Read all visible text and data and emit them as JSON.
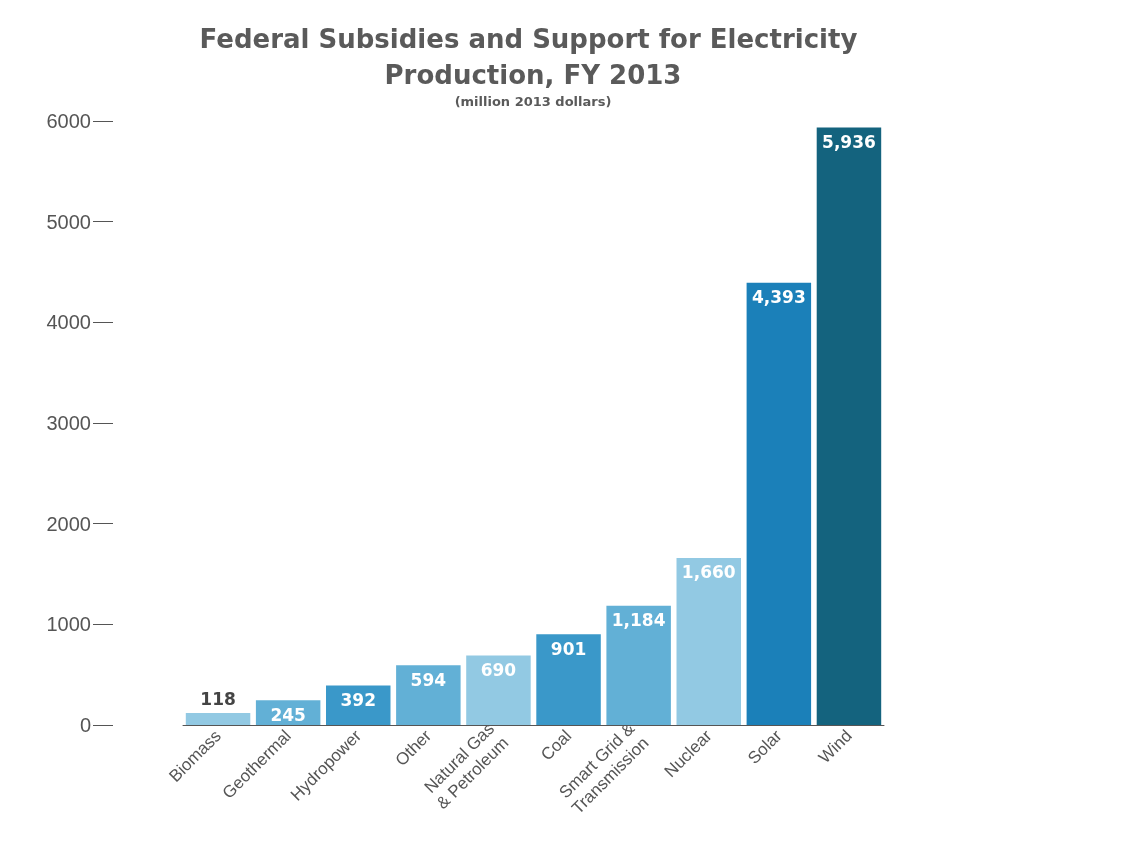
{
  "chart_data": {
    "type": "bar",
    "title": "Federal Subsidies and Support for Electricity Production, FY 2013",
    "subtitle": "(million 2013 dollars)",
    "categories": [
      "Biomass",
      "Geothermal",
      "Hydropower",
      "Other",
      "Natural Gas\n& Petroleum",
      "Coal",
      "Smart Grid &\nTransmission",
      "Nuclear",
      "Solar",
      "Wind"
    ],
    "values": [
      118,
      245,
      392,
      594,
      690,
      901,
      1184,
      1660,
      4393,
      5936
    ],
    "colors": [
      "#92c9e3",
      "#62b0d6",
      "#3a98c9",
      "#62b0d6",
      "#92c9e3",
      "#3a98c9",
      "#62b0d6",
      "#92c9e3",
      "#1b80b9",
      "#14637e"
    ],
    "ylim": [
      0,
      6000
    ],
    "yticks": [
      0,
      1000,
      2000,
      3000,
      4000,
      5000,
      6000
    ],
    "value_labels": [
      "118",
      "245",
      "392",
      "594",
      "690",
      "901",
      "1,184",
      "1,660",
      "4,393",
      "5,936"
    ]
  }
}
